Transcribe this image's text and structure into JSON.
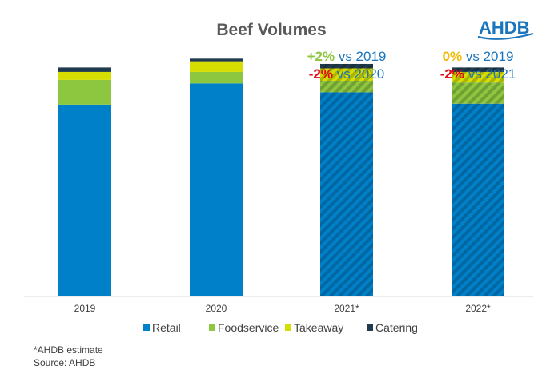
{
  "chart_data": {
    "type": "bar",
    "stacked": true,
    "title": "Beef Volumes",
    "categories": [
      "2019",
      "2020",
      "2021*",
      "2022*"
    ],
    "estimated": [
      false,
      false,
      true,
      true
    ],
    "series": [
      {
        "name": "Retail",
        "color": "#0080C8",
        "values": [
          217,
          241,
          231,
          218
        ]
      },
      {
        "name": "Foodservice",
        "color": "#8DC63F",
        "values": [
          28,
          13,
          13,
          24
        ]
      },
      {
        "name": "Takeaway",
        "color": "#D5DE00",
        "values": [
          9,
          12,
          14,
          12
        ]
      },
      {
        "name": "Catering",
        "color": "#1F3B4D",
        "values": [
          5,
          3,
          5,
          5
        ]
      }
    ],
    "ylim": [
      0,
      272
    ],
    "grid": false,
    "legend": "bottom",
    "annotations": [
      {
        "category": "2021*",
        "lines": [
          {
            "pct": "+2%",
            "pct_color": "#8DC63F",
            "rest": " vs 2019"
          },
          {
            "pct": "-2%",
            "pct_color": "#E30613",
            "rest": " vs 2020"
          }
        ]
      },
      {
        "category": "2022*",
        "lines": [
          {
            "pct": "0%",
            "pct_color": "#F2B900",
            "rest": " vs 2019"
          },
          {
            "pct": "-2%",
            "pct_color": "#E30613",
            "rest": " vs 2021"
          }
        ]
      }
    ]
  },
  "logo": {
    "text": "AHDB"
  },
  "footnotes": [
    "*AHDB estimate",
    "Source: AHDB"
  ]
}
